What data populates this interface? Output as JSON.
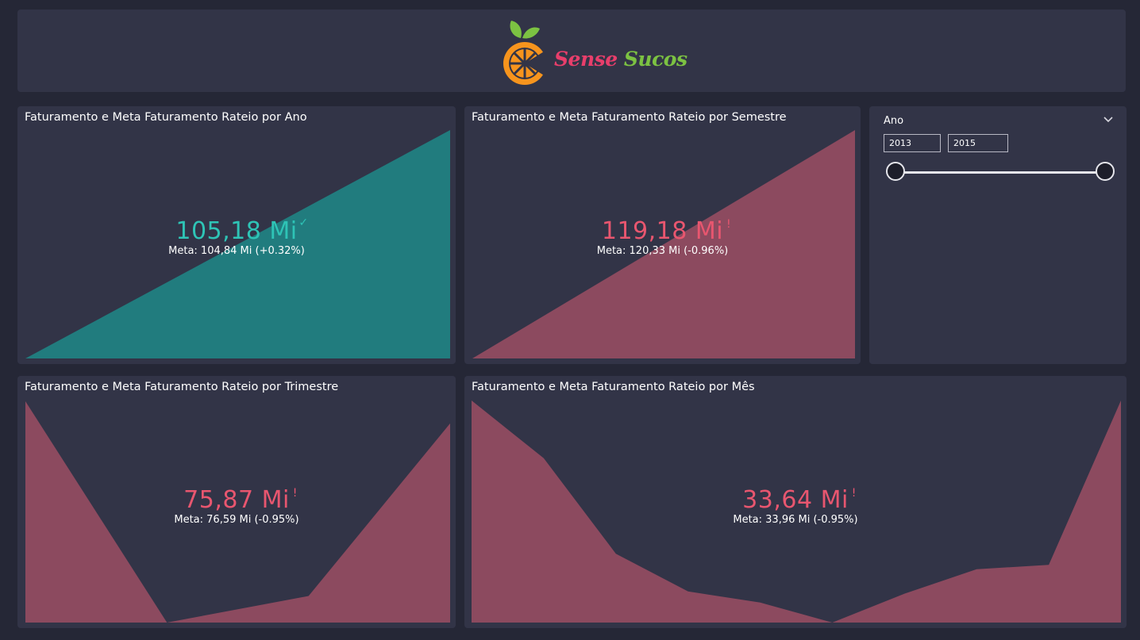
{
  "brand": {
    "word1": "Sense",
    "word2": "Sucos",
    "colors": {
      "orange": "#f7941d",
      "pink": "#e83e6b",
      "green": "#7cc242"
    }
  },
  "colors": {
    "panel": "#323447",
    "background": "#252736",
    "positive": "#2ec4b6",
    "negative": "#e8566f",
    "area_positive": "#217c7e",
    "area_negative": "#8c4a5f"
  },
  "cards": {
    "ano": {
      "title": "Faturamento e Meta Faturamento Rateio por Ano",
      "value": "105,18 Mi",
      "status_icon": "check-icon",
      "status_glyph": "✓",
      "meta": "Meta: 104,84 Mi (+0.32%)"
    },
    "semestre": {
      "title": "Faturamento e Meta Faturamento Rateio por Semestre",
      "value": "119,18 Mi",
      "status_icon": "exclamation-icon",
      "status_glyph": "!",
      "meta": "Meta: 120,33 Mi (-0.96%)"
    },
    "trimestre": {
      "title": "Faturamento e Meta Faturamento Rateio por Trimestre",
      "value": "75,87 Mi",
      "status_icon": "exclamation-icon",
      "status_glyph": "!",
      "meta": "Meta: 76,59 Mi (-0.95%)"
    },
    "mes": {
      "title": "Faturamento e Meta Faturamento Rateio por Mês",
      "value": "33,64 Mi",
      "status_icon": "exclamation-icon",
      "status_glyph": "!",
      "meta": "Meta: 33,96 Mi (-0.95%)"
    }
  },
  "slicer": {
    "label": "Ano",
    "from": "2013",
    "to": "2015",
    "range_fraction": [
      0,
      1
    ]
  },
  "chart_data": [
    {
      "type": "area",
      "name": "ano",
      "values": [
        0,
        1
      ]
    },
    {
      "type": "area",
      "name": "semestre",
      "values": [
        0,
        1
      ]
    },
    {
      "type": "area",
      "name": "trimestre",
      "values": [
        1,
        0,
        0.12,
        0.9
      ]
    },
    {
      "type": "area",
      "name": "mes",
      "values": [
        1,
        0.74,
        0.31,
        0.14,
        0.09,
        0,
        0.13,
        0.24,
        0.26,
        1
      ]
    }
  ]
}
